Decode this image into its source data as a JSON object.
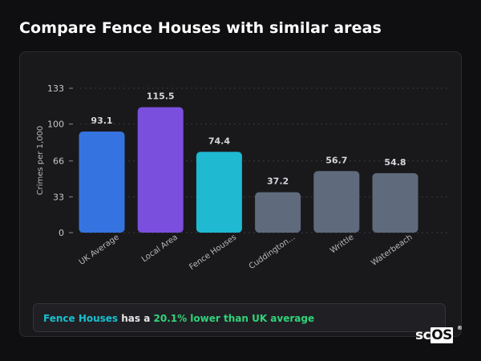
{
  "header": {
    "title": "Compare Fence Houses with similar areas"
  },
  "chart_data": {
    "type": "bar",
    "title": "",
    "xlabel": "",
    "ylabel": "Crimes per 1,000",
    "ylim": [
      0,
      133
    ],
    "yticks": [
      0,
      33,
      66,
      100,
      133
    ],
    "categories": [
      "UK Average",
      "Local Area",
      "Fence Houses",
      "Cuddington...",
      "Writtle",
      "Waterbeach"
    ],
    "values": [
      93.1,
      115.5,
      74.4,
      37.2,
      56.7,
      54.8
    ],
    "value_labels": [
      "93.1",
      "115.5",
      "74.4",
      "37.2",
      "56.7",
      "54.8"
    ],
    "colors": [
      "#3574e0",
      "#7b4fdd",
      "#1fb9d1",
      "#5f6b7d",
      "#5f6b7d",
      "#5f6b7d"
    ],
    "grid": true,
    "legend": "none"
  },
  "callout": {
    "area": "Fence Houses",
    "mid": " has a ",
    "diff": "20.1% lower than UK average"
  },
  "brand": {
    "prefix": "sc",
    "boxed": "OS",
    "mark": "®"
  },
  "colors": {
    "background": "#0f0f12",
    "card": "#19191c",
    "highlight_area": "#19bfcf",
    "highlight_diff": "#2fd47a"
  }
}
